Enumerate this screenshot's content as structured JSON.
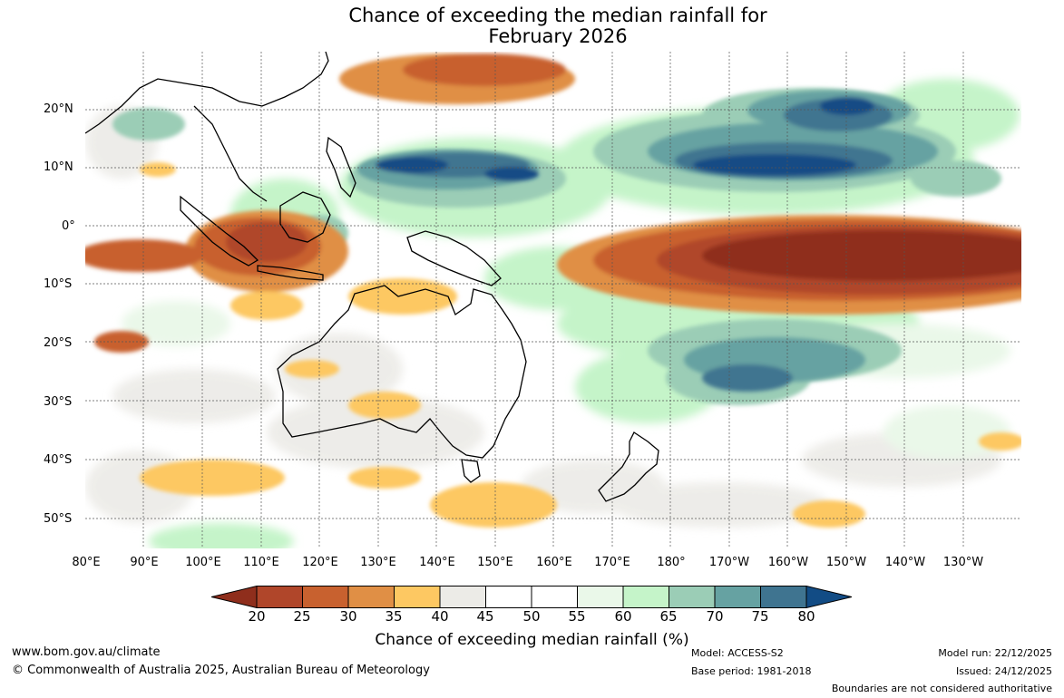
{
  "title": {
    "line1": "Chance of exceeding the median rainfall for",
    "line2": "February 2026"
  },
  "map": {
    "lat_labels": [
      "20°N",
      "10°N",
      "0°",
      "10°S",
      "20°S",
      "30°S",
      "40°S",
      "50°S"
    ],
    "lon_labels": [
      "80°E",
      "90°E",
      "100°E",
      "110°E",
      "120°E",
      "130°E",
      "140°E",
      "150°E",
      "160°E",
      "170°E",
      "180°",
      "170°W",
      "160°W",
      "150°W",
      "140°W",
      "130°W"
    ]
  },
  "colorbar": {
    "title": "Chance of exceeding median rainfall (%)",
    "ticks": [
      "20",
      "25",
      "30",
      "35",
      "40",
      "45",
      "50",
      "55",
      "60",
      "65",
      "70",
      "75",
      "80"
    ],
    "colors": [
      "#8f2e1c",
      "#b0462a",
      "#c8612f",
      "#e08f45",
      "#fdc862",
      "#ecebe7",
      "#ffffff",
      "#ffffff",
      "#eaf8e9",
      "#c5f4c9",
      "#9bcdb6",
      "#66a2a2",
      "#3f7490",
      "#124c85"
    ]
  },
  "footer": {
    "website": "www.bom.gov.au/climate",
    "copyright": "© Commonwealth of Australia 2025, Australian Bureau of Meteorology",
    "model": "Model: ACCESS-S2",
    "base_period": "Base period: 1981-2018",
    "model_run": "Model run: 22/12/2025",
    "issued": "Issued: 24/12/2025",
    "disclaimer": "Boundaries are not considered authoritative"
  }
}
